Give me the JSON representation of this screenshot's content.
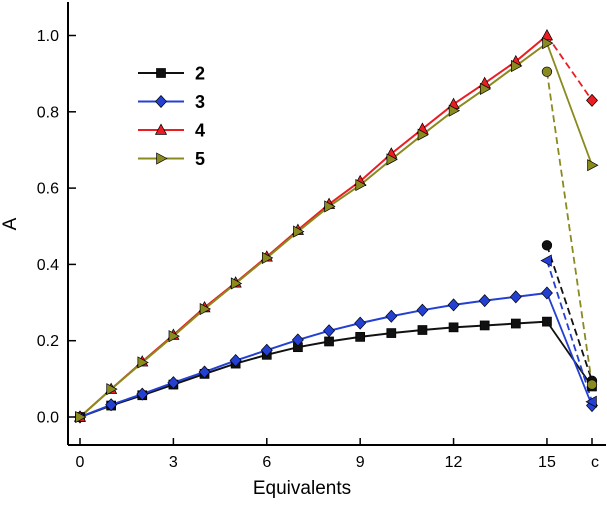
{
  "chart_data": {
    "type": "line",
    "title": "",
    "xlabel": "Equivalents",
    "ylabel": "A",
    "x_ticks": [
      0,
      3,
      6,
      9,
      12,
      15
    ],
    "c_label": "c",
    "y_ticks": [
      "0.0",
      "0.2",
      "0.4",
      "0.6",
      "0.8",
      "1.0"
    ],
    "xlim": [
      -0.4,
      16.9
    ],
    "ylim": [
      -0.073,
      1.07
    ],
    "grid": false,
    "legend_position": "upper-left-inside",
    "x": [
      0,
      1,
      2,
      3,
      4,
      5,
      6,
      7,
      8,
      9,
      10,
      11,
      12,
      13,
      14,
      15
    ],
    "series": [
      {
        "name": "2",
        "color": "#111111",
        "marker": "square",
        "values": [
          0.0,
          0.03,
          0.057,
          0.085,
          0.113,
          0.14,
          0.163,
          0.183,
          0.198,
          0.21,
          0.22,
          0.228,
          0.235,
          0.24,
          0.245,
          0.25
        ],
        "c_value": 0.08,
        "c_marker": "square",
        "c_line": "solid"
      },
      {
        "name": "3",
        "color": "#2340d2",
        "marker": "diamond",
        "values": [
          0.0,
          0.032,
          0.06,
          0.09,
          0.118,
          0.148,
          0.175,
          0.202,
          0.226,
          0.246,
          0.264,
          0.28,
          0.294,
          0.305,
          0.315,
          0.325
        ],
        "c_value": 0.03,
        "c_marker": "diamond",
        "c_line": "solid"
      },
      {
        "name": "4",
        "color": "#eb1c22",
        "marker": "triangle-up",
        "values": [
          0.0,
          0.073,
          0.145,
          0.215,
          0.287,
          0.352,
          0.42,
          0.49,
          0.558,
          0.618,
          0.69,
          0.755,
          0.82,
          0.875,
          0.932,
          1.0
        ],
        "c_value": 0.83,
        "c_marker": "diamond",
        "c_line": "dashed"
      },
      {
        "name": "5",
        "color": "#8a8a1e",
        "marker": "triangle-right",
        "values": [
          0.0,
          0.073,
          0.143,
          0.212,
          0.283,
          0.35,
          0.417,
          0.486,
          0.552,
          0.608,
          0.675,
          0.74,
          0.803,
          0.86,
          0.92,
          0.98
        ],
        "c_value": 0.66,
        "c_marker": "triangle-right",
        "c_line": "solid"
      }
    ],
    "extra_dashed_segments": [
      {
        "color": "#111111",
        "marker": "circle",
        "from_x": 15,
        "from_value": 0.45,
        "c_value": 0.095
      },
      {
        "color": "#2340d2",
        "marker": "triangle-left",
        "from_x": 15,
        "from_value": 0.41,
        "c_value": 0.04
      },
      {
        "color": "#8a8a1e",
        "marker": "circle",
        "from_x": 15,
        "from_value": 0.905,
        "c_value": 0.085
      }
    ],
    "legend_items": [
      "2",
      "3",
      "4",
      "5"
    ]
  }
}
